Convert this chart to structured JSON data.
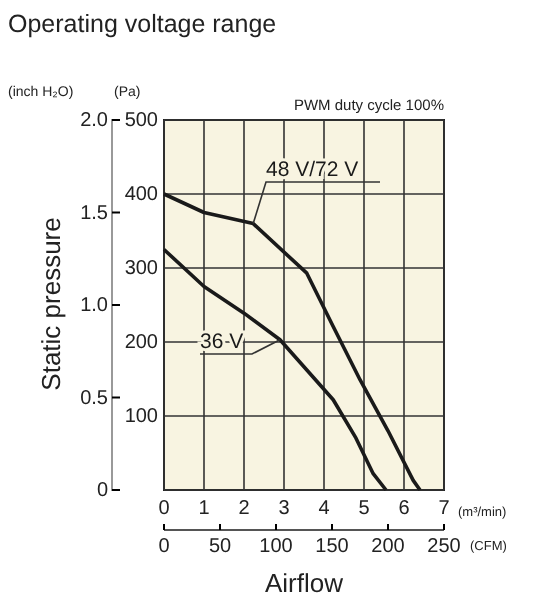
{
  "chart_data": {
    "type": "line",
    "title": "Operating voltage range",
    "xlabel": "(m³/min)",
    "x2label": "(CFM)",
    "ylabel": "(Pa)",
    "y2label": "(inch H₂O)",
    "annotations": [
      "Static pressure",
      "Airflow",
      "PWM duty cycle 100%"
    ],
    "series": [
      {
        "name": "48 V/72 V",
        "color": "#1a1a1a",
        "x": [
          0,
          1,
          2.23,
          3.57,
          4.23,
          4.9,
          5.6,
          6.23,
          6.4
        ],
        "values": [
          400,
          375,
          360,
          293,
          221,
          149,
          80,
          13,
          0
        ]
      },
      {
        "name": "36 V",
        "color": "#1a1a1a",
        "x": [
          0,
          1,
          2,
          2.9,
          4.23,
          4.8,
          5.23,
          5.55
        ],
        "values": [
          325,
          275,
          239,
          203,
          122,
          70,
          22,
          0
        ]
      }
    ],
    "xlim": [
      0,
      7
    ],
    "xticks": [
      0,
      1,
      2,
      3,
      4,
      5,
      6,
      7
    ],
    "x2lim": [
      0,
      250
    ],
    "x2ticks": [
      0,
      50,
      100,
      150,
      200,
      250
    ],
    "ylim": [
      0,
      500
    ],
    "yticks": [
      {
        "value": 0,
        "label": null
      },
      100,
      200,
      300,
      400,
      500
    ],
    "y2lim": [
      0,
      2.0
    ],
    "y2ticks": [
      0,
      0.5,
      {
        "value": 1,
        "label": "1.0"
      },
      1.5,
      {
        "value": 2,
        "label": "2.0"
      }
    ],
    "grid": true,
    "marker": "none",
    "line_style": "solid"
  }
}
